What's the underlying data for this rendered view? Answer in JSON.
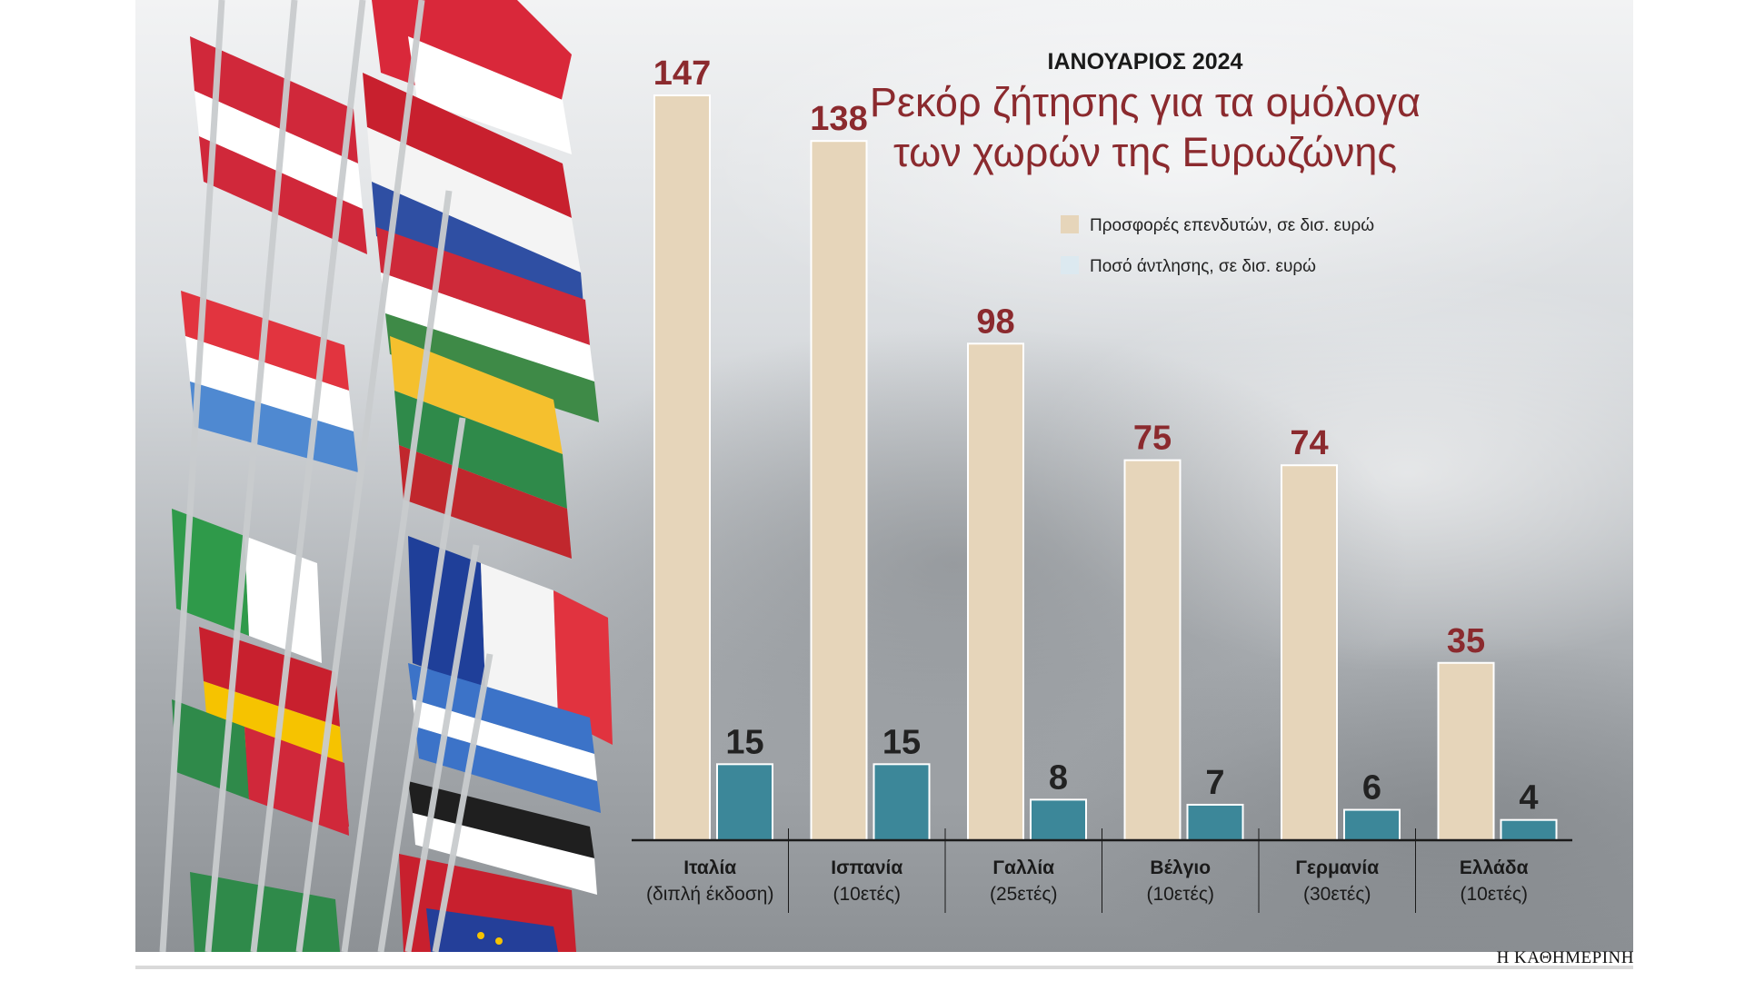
{
  "chart_data": {
    "type": "bar",
    "kicker": "ΙΑΝΟΥΑΡΙΟΣ 2024",
    "title_lines": [
      "Ρεκόρ ζήτησης για τα ομόλογα",
      "των χωρών της Ευρωζώνης"
    ],
    "categories": [
      {
        "name": "Ιταλία",
        "detail": "(διπλή έκδοση)"
      },
      {
        "name": "Ισπανία",
        "detail": "(10ετές)"
      },
      {
        "name": "Γαλλία",
        "detail": "(25ετές)"
      },
      {
        "name": "Βέλγιο",
        "detail": "(10ετές)"
      },
      {
        "name": "Γερμανία",
        "detail": "(30ετές)"
      },
      {
        "name": "Ελλάδα",
        "detail": "(10ετές)"
      }
    ],
    "series": [
      {
        "name": "Προσφορές επενδυτών, σε δισ. ευρώ",
        "color": "#e6d5ba",
        "label_color": "#8b2a2e",
        "values": [
          147,
          138,
          98,
          75,
          74,
          35
        ]
      },
      {
        "name": "Ποσό άντλησης, σε δισ. ευρώ",
        "color": "#3c8799",
        "label_color": "#222222",
        "values": [
          15,
          15,
          8,
          7,
          6,
          4
        ]
      }
    ],
    "legend_swatch_colors": [
      "#e6d5ba",
      "#dce9f0"
    ],
    "ylim": [
      0,
      147
    ],
    "legend_position": "top-right",
    "grid": false
  },
  "credit": "Η ΚΑΘΗΜΕΡΙΝΗ"
}
